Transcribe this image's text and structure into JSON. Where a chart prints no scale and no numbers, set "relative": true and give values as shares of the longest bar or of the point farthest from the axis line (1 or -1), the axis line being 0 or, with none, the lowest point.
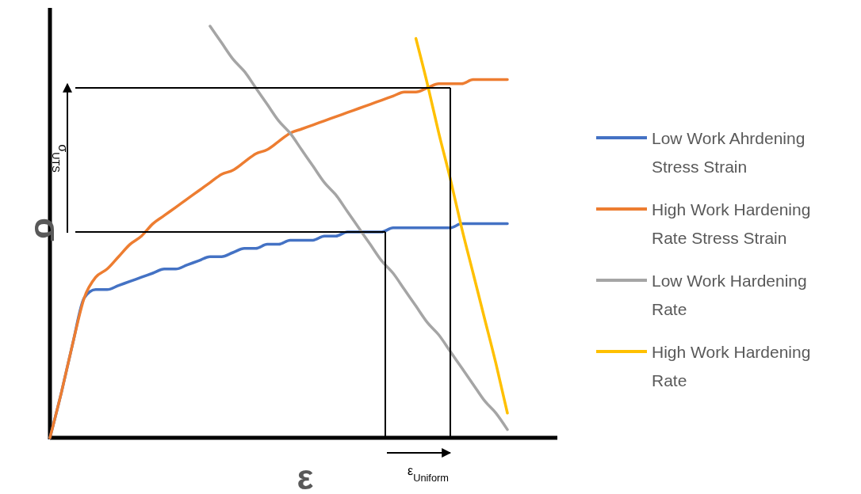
{
  "chart_data": {
    "type": "line",
    "relative": true,
    "xlabel": "ε",
    "ylabel": "σ",
    "legend": "right",
    "annotations": [
      "σ$_{UTS}$",
      "ε$_{Uniform}$"
    ],
    "ref_lines": [
      {
        "axis": "y",
        "value": 0.85,
        "color": "#000000"
      },
      {
        "axis": "y",
        "value": 0.5,
        "color": "#000000"
      }
    ],
    "categories": [
      null,
      null,
      null,
      null,
      null,
      null,
      null,
      null,
      null,
      null,
      null,
      null,
      null,
      null,
      null,
      null,
      null,
      null,
      null,
      null,
      null,
      null,
      null,
      null,
      null,
      null,
      null,
      null,
      null,
      null,
      null,
      null,
      null,
      null,
      null,
      null,
      null,
      null,
      null,
      null,
      null
    ],
    "series": [
      {
        "name": "Low Work Ahrdening Stress Strain",
        "color": "#4472c4",
        "values": [
          0,
          0.11,
          0.23,
          0.34,
          0.36,
          0.36,
          0.37,
          0.38,
          0.39,
          0.4,
          0.41,
          0.41,
          0.42,
          0.43,
          0.44,
          0.44,
          0.45,
          0.46,
          0.46,
          0.47,
          0.47,
          0.48,
          0.48,
          0.48,
          0.49,
          0.49,
          0.5,
          0.5,
          0.5,
          0.5,
          0.51,
          0.51,
          0.51,
          0.51,
          0.51,
          0.51,
          0.52,
          0.52,
          0.52,
          0.52,
          0.52
        ]
      },
      {
        "name": "High Work Hardening Rate Stress Strain",
        "color": "#ed7d31",
        "values": [
          0,
          0.11,
          0.23,
          0.34,
          0.39,
          0.41,
          0.44,
          0.47,
          0.49,
          0.52,
          0.54,
          0.56,
          0.58,
          0.6,
          0.62,
          0.64,
          0.65,
          0.67,
          0.69,
          0.7,
          0.72,
          0.74,
          0.75,
          0.76,
          0.77,
          0.78,
          0.79,
          0.8,
          0.81,
          0.82,
          0.83,
          0.84,
          0.84,
          0.85,
          0.86,
          0.86,
          0.86,
          0.87,
          0.87,
          0.87,
          0.87
        ]
      },
      {
        "name": "Low Work Hardening Rate",
        "color": "#a5a5a5",
        "values": [
          null,
          null,
          null,
          null,
          null,
          null,
          null,
          null,
          null,
          null,
          null,
          null,
          null,
          null,
          1,
          0.96,
          0.92,
          0.89,
          0.85,
          0.81,
          0.77,
          0.74,
          0.7,
          0.66,
          0.62,
          0.59,
          0.55,
          0.51,
          0.47,
          0.43,
          0.4,
          0.36,
          0.32,
          0.28,
          0.25,
          0.21,
          0.17,
          0.13,
          0.09,
          0.06,
          0.02
        ]
      },
      {
        "name": "High Work Hardening Rate",
        "color": "#ffc000",
        "values": [
          null,
          null,
          null,
          null,
          null,
          null,
          null,
          null,
          null,
          null,
          null,
          null,
          null,
          null,
          null,
          null,
          null,
          null,
          null,
          null,
          null,
          null,
          null,
          null,
          null,
          null,
          null,
          null,
          null,
          null,
          null,
          null,
          0.97,
          0.86,
          0.74,
          0.63,
          0.51,
          0.4,
          0.29,
          0.18,
          0.06
        ]
      }
    ]
  }
}
